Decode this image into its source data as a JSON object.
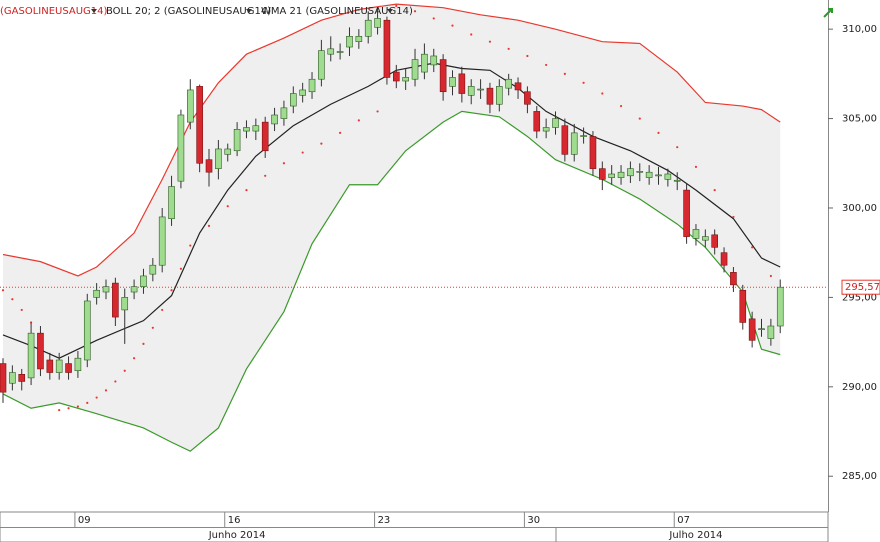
{
  "chart_data": {
    "type": "candlestick",
    "toolbar": [
      "(GASOLINEUSAUG14)",
      "BOLL 20; 2 (GASOLINEUSAUG14)",
      "WMA 21 (GASOLINEUSAUG14)"
    ],
    "open": [
      291.3,
      290.2,
      290.7,
      290.5,
      293.0,
      291.5,
      290.8,
      291.3,
      290.9,
      291.5,
      295.0,
      295.3,
      295.8,
      294.3,
      295.3,
      295.6,
      296.3,
      296.8,
      299.4,
      301.5,
      304.8,
      306.8,
      302.7,
      302.2,
      303.0,
      303.2,
      304.3,
      304.3,
      304.8,
      304.7,
      305.0,
      305.7,
      306.3,
      306.5,
      307.2,
      308.6,
      308.7,
      309.0,
      309.3,
      309.6,
      310.1,
      310.5,
      307.6,
      307.1,
      307.2,
      307.6,
      308.0,
      308.3,
      306.8,
      307.5,
      306.3,
      306.6,
      306.7,
      305.8,
      306.7,
      307.0,
      306.5,
      305.4,
      304.3,
      304.5,
      304.6,
      303.0,
      304.0,
      304.0,
      302.2,
      301.7,
      301.7,
      301.8,
      302.0,
      301.7,
      301.8,
      301.6,
      301.5,
      301.0,
      298.3,
      298.2,
      298.5,
      297.5,
      296.4,
      295.4,
      293.8,
      293.2,
      292.7,
      293.4
    ],
    "high": [
      291.6,
      291.2,
      291.0,
      293.6,
      293.4,
      291.9,
      291.9,
      291.7,
      292.0,
      295.2,
      295.8,
      296.0,
      296.1,
      295.5,
      296.0,
      296.6,
      297.2,
      300.0,
      301.8,
      305.5,
      307.2,
      306.9,
      303.3,
      303.8,
      303.6,
      304.8,
      304.9,
      305.0,
      305.1,
      305.6,
      306.0,
      306.8,
      307.0,
      307.6,
      309.4,
      309.6,
      309.2,
      310.1,
      310.0,
      311.0,
      311.2,
      310.7,
      308.0,
      307.8,
      308.9,
      309.2,
      308.9,
      308.6,
      307.7,
      307.9,
      307.2,
      307.2,
      307.0,
      307.2,
      307.5,
      307.3,
      306.8,
      305.7,
      305.0,
      305.4,
      305.0,
      304.7,
      304.5,
      304.3,
      302.6,
      302.4,
      302.4,
      302.6,
      302.5,
      302.4,
      302.3,
      302.2,
      302.0,
      301.4,
      299.1,
      298.8,
      298.8,
      297.8,
      296.7,
      295.7,
      294.2,
      293.8,
      293.8,
      296.0
    ],
    "low": [
      289.1,
      289.8,
      289.8,
      290.1,
      290.6,
      290.4,
      290.4,
      290.4,
      290.5,
      291.1,
      294.6,
      294.9,
      293.4,
      292.4,
      294.9,
      295.2,
      295.9,
      296.4,
      299.0,
      301.1,
      304.4,
      302.0,
      301.2,
      301.6,
      302.6,
      302.9,
      303.9,
      303.8,
      302.8,
      304.3,
      304.6,
      305.3,
      305.9,
      306.1,
      306.8,
      308.2,
      308.3,
      308.5,
      308.9,
      309.2,
      309.7,
      306.9,
      306.7,
      306.6,
      306.8,
      307.2,
      307.6,
      306.0,
      306.3,
      305.9,
      305.8,
      306.1,
      305.3,
      305.4,
      306.3,
      306.1,
      305.3,
      303.9,
      303.9,
      304.1,
      302.6,
      302.6,
      303.6,
      301.8,
      301.0,
      301.3,
      301.3,
      301.4,
      301.5,
      301.3,
      301.3,
      301.2,
      301.0,
      298.0,
      297.9,
      297.8,
      297.4,
      296.4,
      295.3,
      293.2,
      292.2,
      292.8,
      292.3,
      293.0
    ],
    "close": [
      289.7,
      290.8,
      290.3,
      293.0,
      291.0,
      290.8,
      291.5,
      290.8,
      291.6,
      294.8,
      295.4,
      295.6,
      293.9,
      295.0,
      295.6,
      296.2,
      296.8,
      299.5,
      301.2,
      305.2,
      306.6,
      302.5,
      302.0,
      303.3,
      303.3,
      304.4,
      304.5,
      304.6,
      303.2,
      305.2,
      305.6,
      306.4,
      306.6,
      307.2,
      308.8,
      308.9,
      308.75,
      309.6,
      309.6,
      310.5,
      310.6,
      307.3,
      307.1,
      307.3,
      308.3,
      308.6,
      308.5,
      306.5,
      307.3,
      306.4,
      306.8,
      306.65,
      305.8,
      306.8,
      307.2,
      306.6,
      305.8,
      304.3,
      304.5,
      305.0,
      303.0,
      304.2,
      304.05,
      302.2,
      301.6,
      301.9,
      302.0,
      302.2,
      302.05,
      302.0,
      301.85,
      301.9,
      301.55,
      298.4,
      298.8,
      298.4,
      297.8,
      296.8,
      295.7,
      293.6,
      292.6,
      293.25,
      293.4,
      295.57
    ],
    "up_color": "#9fdc8f",
    "down_color": "#d8282f",
    "lines": [
      {
        "name": "upper",
        "color": "#e8392f",
        "x": [
          0,
          4,
          8,
          10,
          14,
          17,
          20,
          23,
          26,
          30,
          34,
          38,
          42,
          47,
          51,
          55,
          59,
          64,
          68,
          72,
          75,
          79,
          81,
          83
        ],
        "values": [
          297.4,
          297.0,
          296.2,
          296.7,
          298.6,
          301.6,
          304.8,
          307.0,
          308.6,
          309.5,
          310.5,
          311.1,
          311.4,
          311.2,
          310.8,
          310.5,
          310.0,
          309.3,
          309.2,
          307.6,
          305.9,
          305.7,
          305.5,
          304.8
        ]
      },
      {
        "name": "wma",
        "color": "#222222",
        "x": [
          0,
          3,
          6,
          10,
          15,
          18,
          21,
          24,
          27,
          31,
          35,
          39,
          42,
          46,
          49,
          52,
          55,
          58,
          63,
          67,
          71,
          74,
          78,
          81,
          83
        ],
        "values": [
          292.9,
          292.3,
          291.6,
          292.6,
          293.7,
          295.1,
          298.6,
          301.0,
          302.9,
          304.6,
          305.8,
          306.8,
          307.7,
          308.1,
          307.8,
          307.7,
          306.7,
          305.4,
          304.0,
          303.2,
          302.1,
          301.0,
          299.4,
          297.2,
          296.7
        ]
      },
      {
        "name": "lower",
        "color": "#3a9a2a",
        "x": [
          0,
          3,
          6,
          10,
          15,
          18,
          20,
          23,
          26,
          30,
          33,
          37,
          40,
          43,
          47,
          49,
          53,
          56,
          59,
          64,
          68,
          72,
          75,
          79,
          81,
          83
        ],
        "values": [
          289.6,
          288.8,
          289.1,
          288.5,
          287.7,
          286.9,
          286.4,
          287.7,
          291.0,
          294.2,
          298.0,
          301.3,
          301.3,
          303.2,
          304.8,
          305.4,
          305.1,
          304.0,
          302.7,
          301.6,
          300.5,
          299.1,
          297.8,
          295.3,
          292.1,
          291.8
        ]
      }
    ],
    "sar": {
      "color": "#e8392f",
      "x": [
        0,
        1,
        2,
        3,
        4,
        6,
        7,
        8,
        9,
        10,
        11,
        12,
        13,
        14,
        15,
        16,
        17,
        18,
        19,
        20,
        22,
        24,
        26,
        28,
        30,
        32,
        34,
        36,
        38,
        40,
        42,
        44,
        46,
        48,
        50,
        52,
        54,
        56,
        58,
        60,
        62,
        64,
        66,
        68,
        70,
        72,
        74,
        76,
        78,
        80,
        82
      ],
      "values": [
        295.4,
        294.9,
        294.3,
        293.6,
        292.9,
        288.7,
        288.8,
        288.9,
        289.1,
        289.4,
        289.8,
        290.3,
        290.9,
        291.6,
        292.4,
        293.3,
        294.3,
        295.4,
        296.6,
        297.9,
        299.0,
        300.1,
        301.0,
        301.8,
        302.5,
        303.1,
        303.6,
        304.2,
        304.9,
        305.4,
        311.3,
        311.0,
        310.6,
        310.2,
        309.7,
        309.3,
        308.9,
        308.5,
        308.0,
        307.5,
        307.0,
        306.4,
        305.7,
        305.0,
        304.2,
        303.4,
        302.3,
        301.0,
        299.5,
        297.8,
        296.2
      ]
    },
    "ylim": [
      283.0,
      311.63
    ],
    "yticks": [
      {
        "value": 285,
        "label": "285,00"
      },
      {
        "value": 290,
        "label": "290,00"
      },
      {
        "value": 295,
        "label": "295,00"
      },
      {
        "value": 300,
        "label": "300,00"
      },
      {
        "value": 305,
        "label": "305,00"
      },
      {
        "value": 310,
        "label": "310,00"
      }
    ],
    "xlim": [
      -0.32,
      88.1
    ],
    "xticks": [
      {
        "value": 8,
        "label": "09"
      },
      {
        "value": 24,
        "label": "16"
      },
      {
        "value": 40,
        "label": "23"
      },
      {
        "value": 56,
        "label": "30"
      },
      {
        "value": 72,
        "label": "07"
      }
    ],
    "months": [
      {
        "value": 25,
        "label": "Junho 2014"
      },
      {
        "value": 74,
        "label": "Julho 2014"
      }
    ],
    "last_price": {
      "value": 295.57,
      "label": "295,57"
    }
  }
}
